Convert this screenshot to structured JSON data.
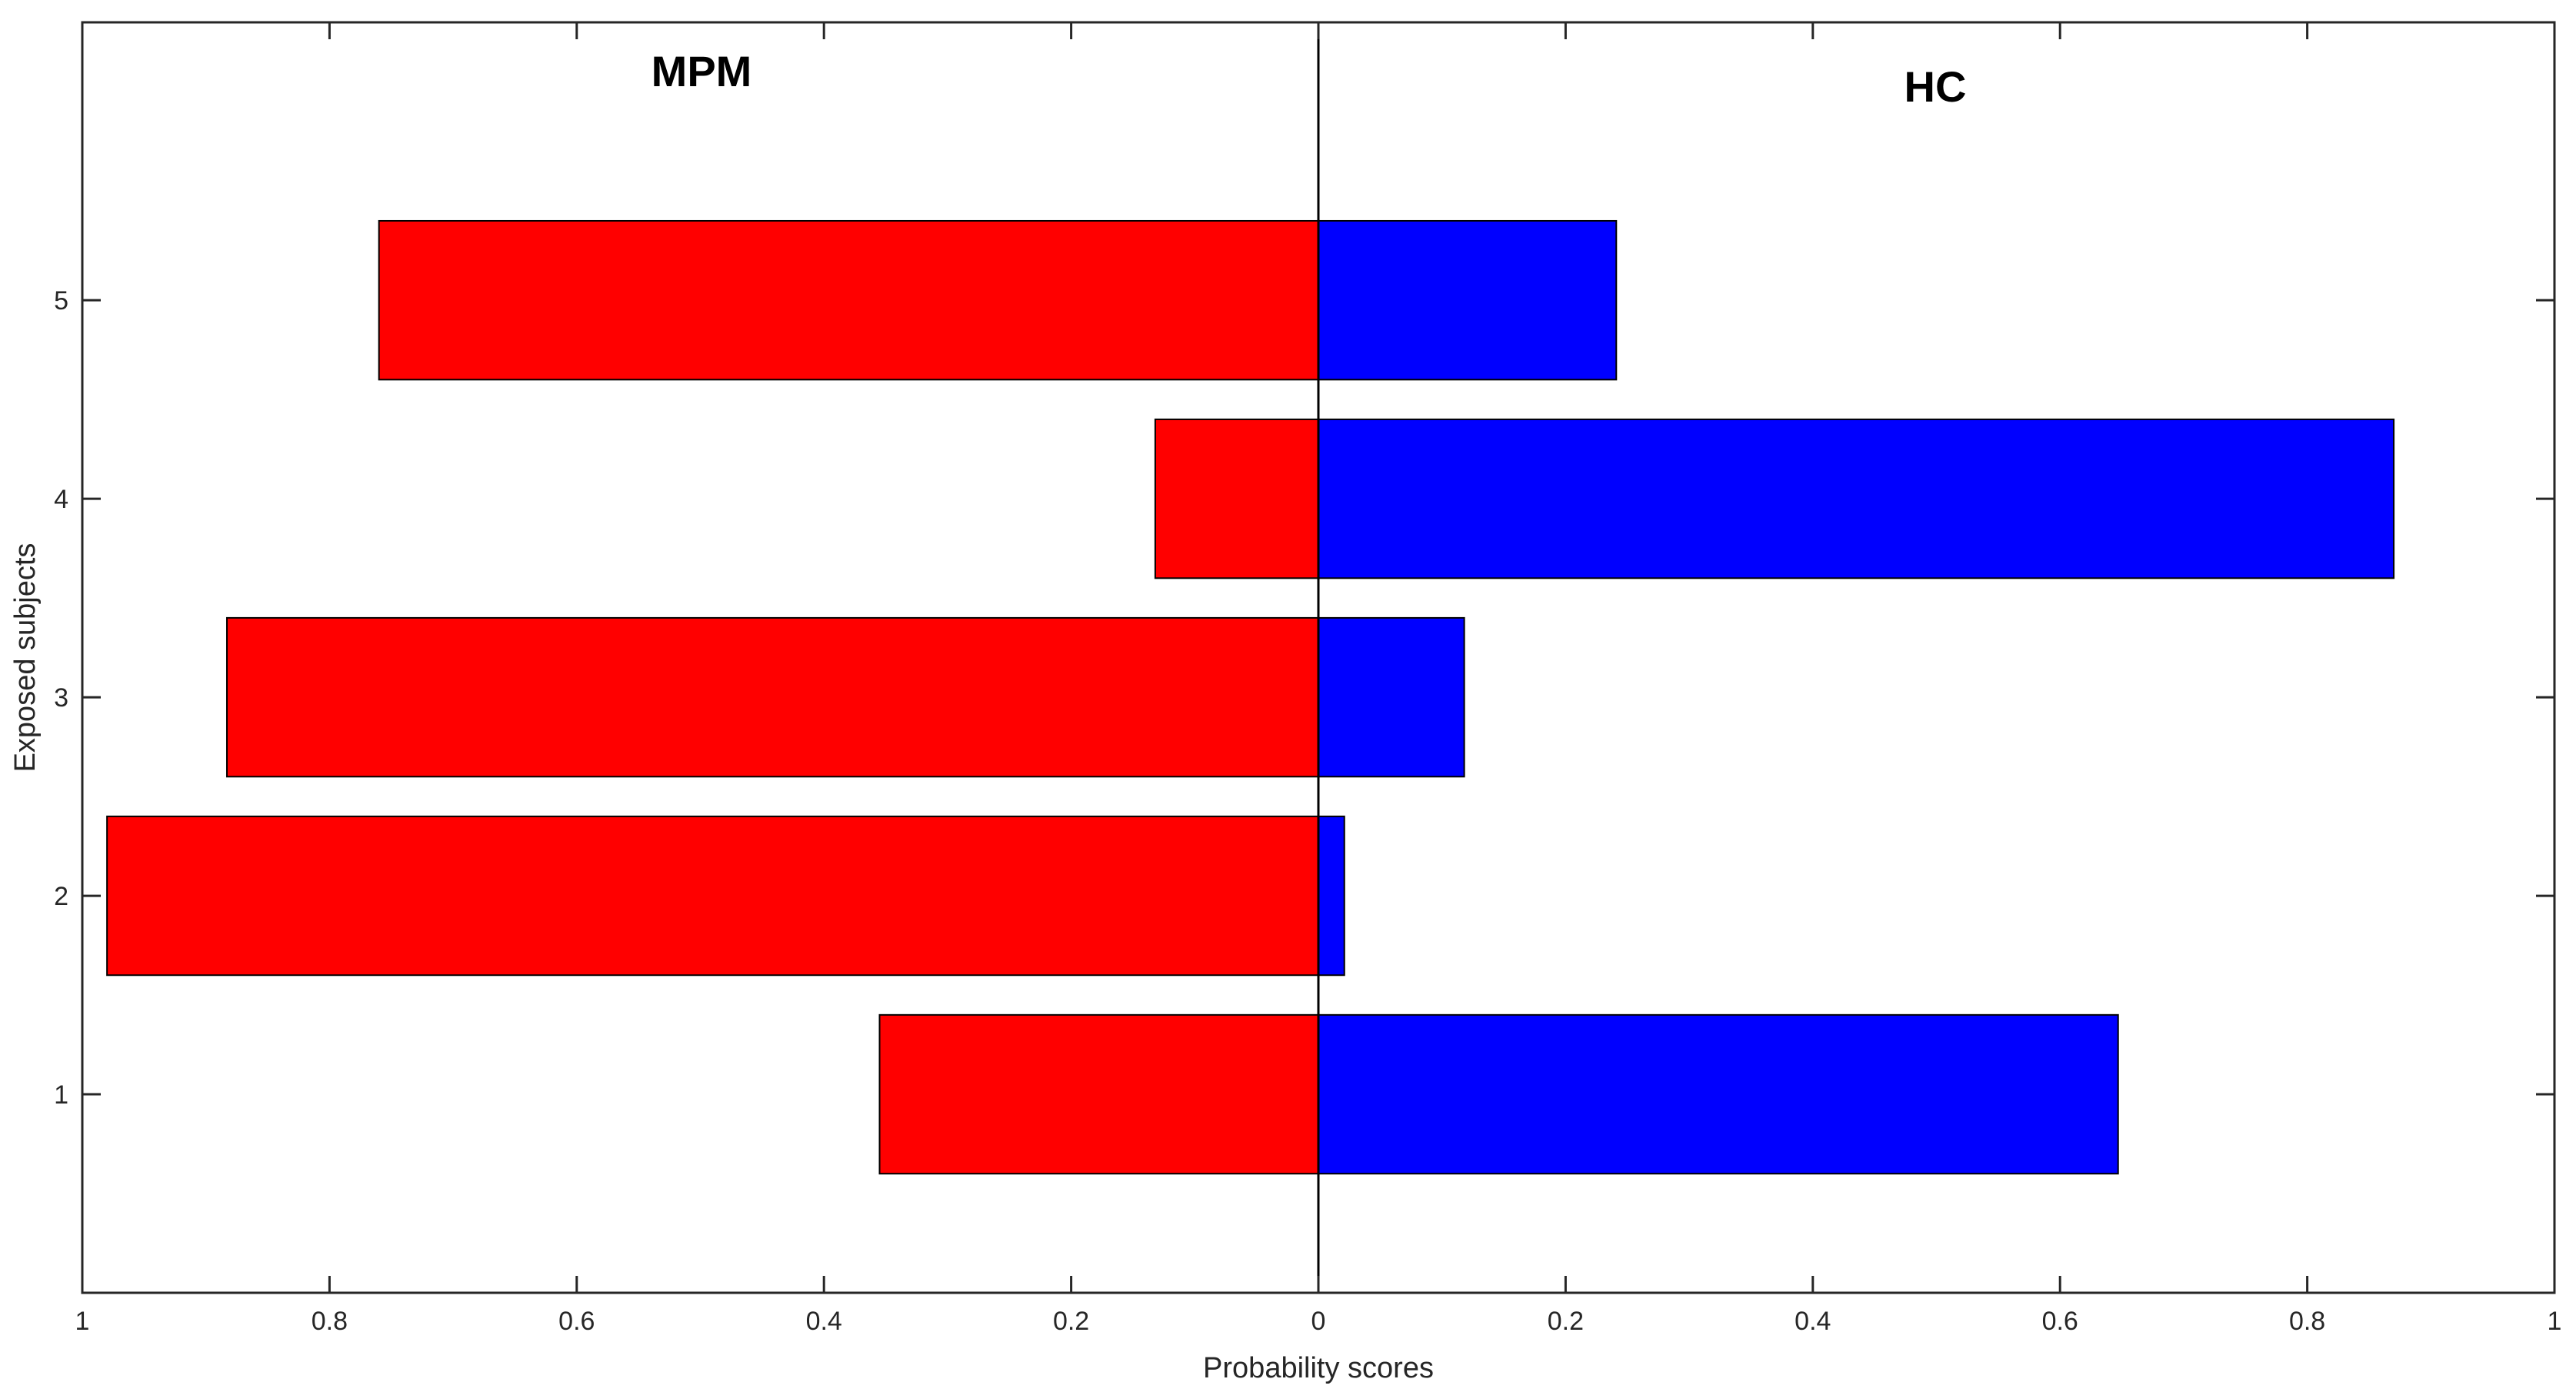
{
  "chart_data": {
    "type": "bar",
    "orientation": "horizontal",
    "layout": "diverging",
    "categories": [
      "1",
      "2",
      "3",
      "4",
      "5"
    ],
    "series": [
      {
        "name": "MPM",
        "color": "#ff0000",
        "direction": "left",
        "values": [
          0.355,
          0.98,
          0.883,
          0.132,
          0.76
        ]
      },
      {
        "name": "HC",
        "color": "#0000ff",
        "direction": "right",
        "values": [
          0.647,
          0.021,
          0.118,
          0.87,
          0.241
        ]
      }
    ],
    "xlabel": "Probability scores",
    "ylabel": "Exposed subjects",
    "xlim": [
      -1,
      1
    ],
    "ylim": [
      0,
      6.4
    ],
    "x_ticks": [
      -1,
      -0.8,
      -0.6,
      -0.4,
      -0.2,
      0,
      0.2,
      0.4,
      0.6,
      0.8,
      1
    ],
    "x_tick_labels": [
      "1",
      "0.8",
      "0.6",
      "0.4",
      "0.2",
      "0",
      "0.2",
      "0.4",
      "0.6",
      "0.8",
      "1"
    ],
    "y_ticks": [
      1,
      2,
      3,
      4,
      5
    ],
    "y_tick_labels": [
      "1",
      "2",
      "3",
      "4",
      "5"
    ],
    "annotations": [
      "MPM",
      "HC"
    ],
    "grid": false,
    "legend": "none"
  }
}
